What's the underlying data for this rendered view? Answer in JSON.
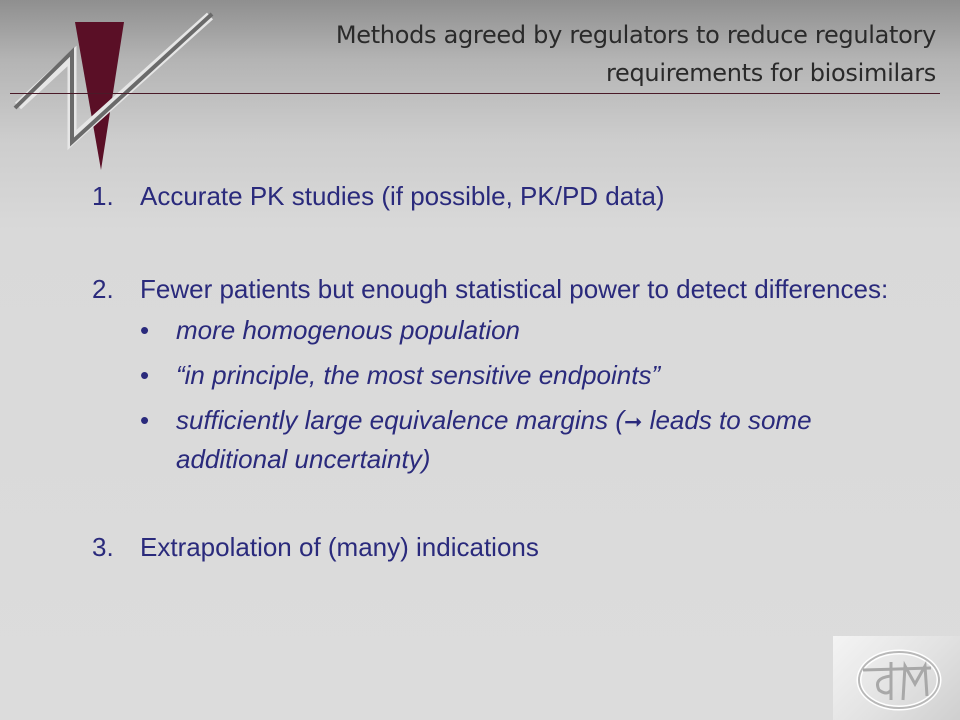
{
  "slide": {
    "title_line1": "Methods agreed by regulators to reduce regulatory",
    "title_line2": "requirements for biosimilars",
    "items": [
      {
        "number": "1.",
        "text": "Accurate PK studies (if possible, PK/PD data)"
      },
      {
        "number": "2.",
        "text": "Fewer patients but enough statistical power to detect differences:",
        "bullets": [
          {
            "symbol": "•",
            "text": "more homogenous population"
          },
          {
            "symbol": "•",
            "text": "“in principle, the most sensitive endpoints”"
          },
          {
            "symbol": "•",
            "text_before": "sufficiently large equivalence margins (",
            "arrow": "➞",
            "text_after": " leads to some additional uncertainty)"
          }
        ]
      },
      {
        "number": "3.",
        "text": "Extrapolation of (many) indications"
      }
    ]
  },
  "colors": {
    "body_text": "#2a2a7c",
    "title_text": "#2a2a2a",
    "accent_maroon": "#5a0f26"
  },
  "icons": [
    "company-logo-icon",
    "corner-logo-icon"
  ]
}
